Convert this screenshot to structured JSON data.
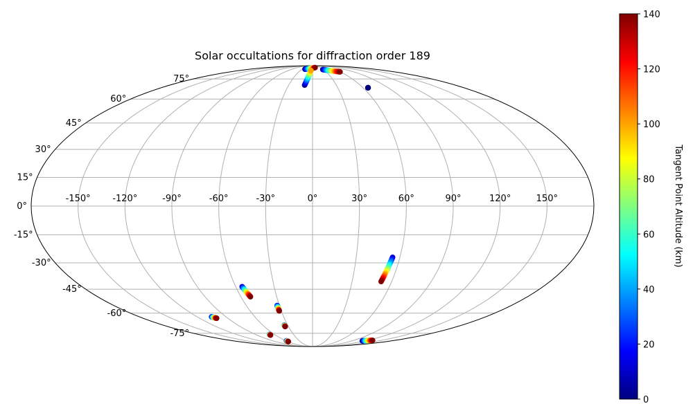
{
  "chart_data": {
    "type": "scatter",
    "projection": "mollweide",
    "title": "Solar occultations for diffraction order 189",
    "grid": true,
    "lon_ticks": [
      -150,
      -120,
      -90,
      -60,
      -30,
      0,
      30,
      60,
      90,
      120,
      150
    ],
    "lon_tick_labels": [
      "-150°",
      "-120°",
      "-90°",
      "-60°",
      "-30°",
      "0°",
      "30°",
      "60°",
      "90°",
      "120°",
      "150°"
    ],
    "lat_ticks": [
      75,
      60,
      45,
      30,
      15,
      0,
      -15,
      -30,
      -45,
      -60,
      -75
    ],
    "lat_tick_labels": [
      "75°",
      "60°",
      "45°",
      "30°",
      "15°",
      "0°",
      "-15°",
      "-30°",
      "-45°",
      "-60°",
      "-75°"
    ],
    "colorbar": {
      "label": "Tangent Point Altitude (km)",
      "range": [
        0,
        140
      ],
      "ticks": [
        0,
        20,
        40,
        60,
        80,
        100,
        120,
        140
      ],
      "tick_labels": [
        "0",
        "20",
        "40",
        "60",
        "80",
        "100",
        "120",
        "140"
      ],
      "colormap": "jet",
      "colormap_stops": [
        "#000080",
        "#0000ff",
        "#0080ff",
        "#00ffff",
        "#80ff80",
        "#ffff00",
        "#ff8000",
        "#ff0000",
        "#800000"
      ]
    },
    "tracks": [
      {
        "start": [
          -22,
          84.5
        ],
        "end": [
          10,
          86.5
        ],
        "alt_start": 0,
        "alt_end": 140
      },
      {
        "start": [
          -10,
          70
        ],
        "end": [
          -4,
          83
        ],
        "alt_start": 0,
        "alt_end": 100
      },
      {
        "start": [
          28,
          84
        ],
        "end": [
          60,
          81.5
        ],
        "alt_start": 0,
        "alt_end": 140
      },
      {
        "start": [
          66,
          68
        ],
        "end": [
          66,
          68
        ],
        "alt_start": 0,
        "alt_end": 0
      },
      {
        "start": [
          55,
          -27
        ],
        "end": [
          52,
          -40.5
        ],
        "alt_start": 10,
        "alt_end": 140
      },
      {
        "start": [
          -55,
          -43.5
        ],
        "end": [
          -52,
          -49.5
        ],
        "alt_start": 10,
        "alt_end": 140
      },
      {
        "start": [
          -32,
          -55
        ],
        "end": [
          -32,
          -58.5
        ],
        "alt_start": 10,
        "alt_end": 140
      },
      {
        "start": [
          -105,
          -62.5
        ],
        "end": [
          -102,
          -63.5
        ],
        "alt_start": 10,
        "alt_end": 140
      },
      {
        "start": [
          -34,
          -68.5
        ],
        "end": [
          -34,
          -69.5
        ],
        "alt_start": 20,
        "alt_end": 140
      },
      {
        "start": [
          -68,
          -76
        ],
        "end": [
          -68,
          -76.5
        ],
        "alt_start": 20,
        "alt_end": 140
      },
      {
        "start": [
          -59,
          -82
        ],
        "end": [
          -59,
          -82.8
        ],
        "alt_start": 0,
        "alt_end": 140
      },
      {
        "start": [
          113,
          -82
        ],
        "end": [
          131,
          -81.5
        ],
        "alt_start": 0,
        "alt_end": 140
      }
    ]
  }
}
